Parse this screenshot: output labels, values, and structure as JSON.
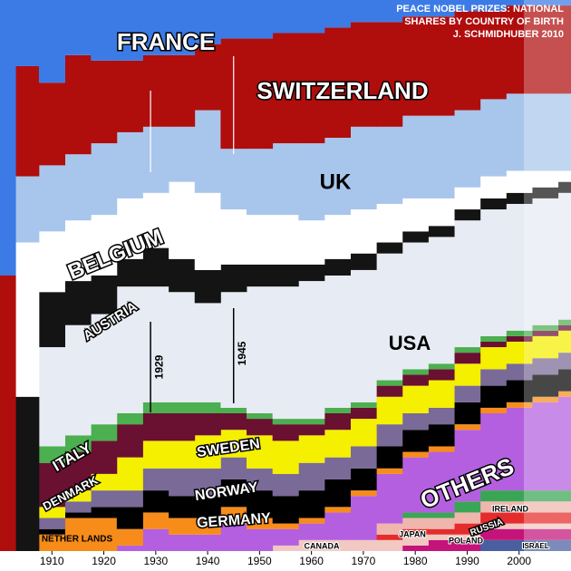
{
  "chart_data": {
    "type": "stacked_step_area",
    "title": [
      "PEACE NOBEL PRIZES: NATIONAL",
      "SHARES BY COUNTRY OF BIRTH"
    ],
    "subtitle": "J. SCHMIDHUBER 2010",
    "x": [
      1901,
      1905,
      1910,
      1915,
      1920,
      1925,
      1930,
      1935,
      1940,
      1945,
      1950,
      1955,
      1960,
      1965,
      1970,
      1975,
      1980,
      1985,
      1990,
      1995,
      2000,
      2005,
      2010
    ],
    "xlim": [
      1900,
      2010
    ],
    "xticks": [
      1910,
      1920,
      1930,
      1940,
      1950,
      1960,
      1970,
      1980,
      1990,
      2000
    ],
    "ylim": [
      0,
      100
    ],
    "markers": [
      1929,
      1945
    ],
    "series": [
      {
        "name": "FRANCE",
        "color": "#3c7be6",
        "values": [
          50,
          12,
          15,
          10,
          11,
          11,
          10,
          10,
          8,
          7,
          7,
          6,
          6,
          5,
          4,
          4,
          3,
          3,
          2,
          2,
          1,
          1,
          1
        ]
      },
      {
        "name": "SWITZERLAND",
        "color": "#b00d0d",
        "values": [
          50,
          20,
          15,
          18,
          15,
          13,
          13,
          13,
          12,
          20,
          20,
          20,
          20,
          20,
          19,
          19,
          18,
          18,
          18,
          16,
          16,
          16,
          16
        ]
      },
      {
        "name": "UK",
        "color": "#a8c6ec",
        "values": [
          0,
          12,
          12,
          12,
          13,
          12,
          12,
          10,
          15,
          11,
          12,
          13,
          14,
          14,
          15,
          14,
          15,
          15,
          14,
          14,
          14,
          14,
          14
        ]
      },
      {
        "name": "BELGIUM",
        "color": "#ffffff",
        "values": [
          0,
          28,
          11,
          11,
          11,
          11,
          10,
          14,
          14,
          10,
          9,
          9,
          8,
          8,
          8,
          7,
          6,
          5,
          4,
          4,
          4,
          3,
          2
        ]
      },
      {
        "name": "AUSTRIA",
        "color": "#141414",
        "values": [
          0,
          28,
          10,
          8,
          7,
          5,
          7,
          6,
          6,
          5,
          4,
          4,
          3,
          3,
          3,
          2,
          2,
          2,
          2,
          2,
          2,
          2,
          2
        ]
      },
      {
        "name": "USA",
        "color": "#e7ebf3",
        "values": [
          0,
          0,
          18,
          20,
          20,
          23,
          21,
          20,
          18,
          21,
          23,
          24,
          25,
          24,
          24,
          23,
          23,
          23,
          23,
          23,
          23,
          23,
          23
        ]
      },
      {
        "name": "ITALY",
        "color": "#4caf50",
        "values": [
          0,
          0,
          3,
          3,
          3,
          2,
          2,
          2,
          2,
          1,
          1,
          1,
          1,
          1,
          1,
          1,
          1,
          1,
          1,
          1,
          1,
          1,
          1
        ]
      },
      {
        "name": "DENMARK",
        "color": "#6a1030",
        "values": [
          0,
          0,
          8,
          7,
          6,
          6,
          5,
          5,
          4,
          3,
          3,
          3,
          2,
          3,
          2,
          2,
          2,
          2,
          2,
          1,
          1,
          1,
          1
        ]
      },
      {
        "name": "SWEDEN",
        "color": "#f5ef00",
        "values": [
          0,
          0,
          2,
          2,
          3,
          6,
          5,
          5,
          6,
          5,
          6,
          6,
          5,
          5,
          5,
          5,
          5,
          5,
          4,
          4,
          4,
          4,
          4
        ]
      },
      {
        "name": "NORWAY",
        "color": "#7a6a98",
        "values": [
          0,
          0,
          2,
          2,
          3,
          3,
          4,
          5,
          5,
          4,
          4,
          4,
          5,
          4,
          4,
          4,
          3,
          3,
          3,
          3,
          3,
          3,
          3
        ]
      },
      {
        "name": "GERMANY",
        "color": "#000000",
        "values": [
          0,
          0,
          1,
          1,
          2,
          4,
          4,
          4,
          4,
          5,
          5,
          5,
          5,
          5,
          4,
          4,
          4,
          4,
          4,
          4,
          4,
          4,
          4
        ]
      },
      {
        "name": "NETHER LANDS",
        "color": "#f78c1a",
        "values": [
          0,
          0,
          3,
          6,
          6,
          3,
          3,
          3,
          3,
          3,
          2,
          1,
          1,
          1,
          1,
          1,
          1,
          1,
          1,
          1,
          1,
          1,
          1
        ]
      },
      {
        "name": "OTHERS",
        "color": "#b45fe0",
        "values": [
          0,
          0,
          0,
          0,
          0,
          1,
          4,
          3,
          3,
          5,
          4,
          3,
          3,
          5,
          8,
          9,
          10,
          11,
          13,
          14,
          15,
          16,
          17
        ]
      },
      {
        "name": "IRELAND",
        "color": "#3aa655",
        "values": [
          0,
          0,
          0,
          0,
          0,
          0,
          0,
          0,
          0,
          0,
          0,
          0,
          0,
          0,
          0,
          0,
          1,
          1,
          2,
          2,
          2,
          2,
          2
        ]
      },
      {
        "name": "JAPAN",
        "color": "#f0b6ae",
        "values": [
          0,
          0,
          0,
          0,
          0,
          0,
          0,
          0,
          0,
          0,
          0,
          0,
          0,
          0,
          0,
          2,
          2,
          2,
          2,
          2,
          2,
          2,
          2
        ]
      },
      {
        "name": "RUSSIA",
        "color": "#e52b2b",
        "values": [
          0,
          0,
          0,
          0,
          0,
          0,
          0,
          0,
          0,
          0,
          0,
          0,
          0,
          0,
          0,
          1,
          1,
          1,
          2,
          2,
          2,
          2,
          2
        ]
      },
      {
        "name": "CANADA",
        "color": "#f2c8c2",
        "values": [
          0,
          0,
          0,
          0,
          0,
          0,
          0,
          0,
          0,
          0,
          0,
          1,
          2,
          2,
          2,
          2,
          2,
          1,
          1,
          1,
          1,
          1,
          1
        ]
      },
      {
        "name": "POLAND",
        "color": "#c4147a",
        "values": [
          0,
          0,
          0,
          0,
          0,
          0,
          0,
          0,
          0,
          0,
          0,
          0,
          0,
          0,
          0,
          0,
          1,
          2,
          2,
          2,
          2,
          2,
          2
        ]
      },
      {
        "name": "ISRAEL",
        "color": "#4a5fa0",
        "values": [
          0,
          0,
          0,
          0,
          0,
          0,
          0,
          0,
          0,
          0,
          0,
          0,
          0,
          0,
          0,
          0,
          0,
          0,
          0,
          2,
          2,
          2,
          2
        ]
      }
    ]
  }
}
